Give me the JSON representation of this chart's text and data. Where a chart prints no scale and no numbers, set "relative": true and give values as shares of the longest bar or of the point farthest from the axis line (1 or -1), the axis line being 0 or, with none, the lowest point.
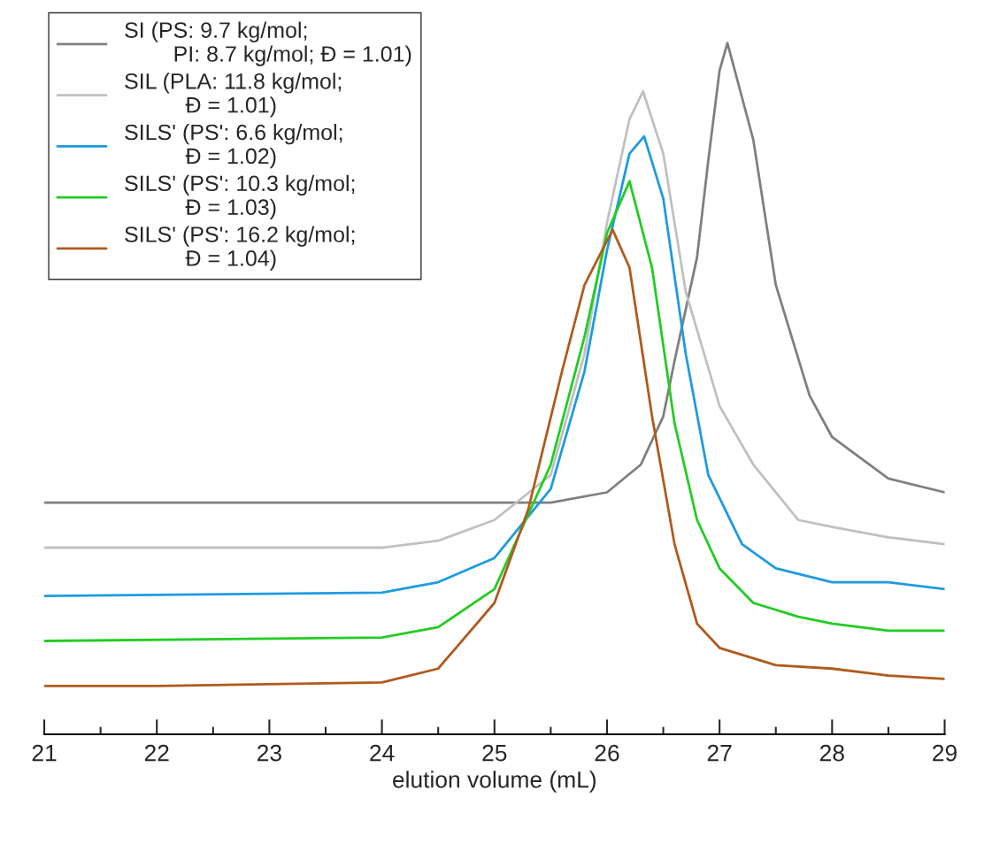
{
  "chart_data": {
    "type": "line",
    "relative": true,
    "xlabel": "elution volume (mL)",
    "xlim": [
      21,
      29
    ],
    "xticks": [
      21,
      22,
      23,
      24,
      25,
      26,
      27,
      28,
      29
    ],
    "legend": "top left",
    "marker": "none",
    "line_style": "solid",
    "grid": false,
    "tick_labels": "x",
    "series": [
      {
        "name": "SI (PS: 9.7 kg/mol;\n        PI: 8.7 kg/mol; Đ = 1.01)",
        "color": "#7f7f7f",
        "x": [
          21,
          25.5,
          26,
          26.3,
          26.5,
          26.6,
          26.8,
          26.9,
          27.0,
          27.07,
          27.3,
          27.5,
          27.8,
          28,
          28.5,
          29
        ],
        "values": [
          0.335,
          0.335,
          0.35,
          0.39,
          0.46,
          0.54,
          0.69,
          0.83,
          0.96,
          1,
          0.86,
          0.65,
          0.49,
          0.43,
          0.37,
          0.35
        ]
      },
      {
        "name": "SIL (PLA: 11.8 kg/mol;\n          Đ = 1.01)",
        "color": "#c0c0c0",
        "x": [
          21,
          24,
          24.5,
          25,
          25.5,
          25.8,
          26,
          26.2,
          26.32,
          26.5,
          26.7,
          27,
          27.3,
          27.7,
          28,
          28.5,
          29
        ],
        "values": [
          0.27,
          0.27,
          0.28,
          0.31,
          0.375,
          0.55,
          0.74,
          0.89,
          0.93,
          0.84,
          0.64,
          0.475,
          0.39,
          0.31,
          0.3,
          0.285,
          0.275
        ]
      },
      {
        "name": "SILS' (PS': 6.6 kg/mol;\n          Đ = 1.02)",
        "color": "#1e9be0",
        "x": [
          21,
          24,
          24.5,
          25,
          25.5,
          25.8,
          26,
          26.2,
          26.33,
          26.5,
          26.7,
          26.9,
          27.2,
          27.5,
          28,
          28.5,
          29
        ],
        "values": [
          0.2,
          0.205,
          0.22,
          0.255,
          0.355,
          0.525,
          0.7,
          0.84,
          0.865,
          0.775,
          0.55,
          0.375,
          0.275,
          0.24,
          0.22,
          0.22,
          0.21
        ]
      },
      {
        "name": "SILS' (PS': 10.3 kg/mol;\n          Đ = 1.03)",
        "color": "#22cc22",
        "x": [
          21,
          24,
          24.5,
          25,
          25.5,
          25.8,
          26,
          26.2,
          26.4,
          26.6,
          26.8,
          27,
          27.3,
          27.7,
          28,
          28.5,
          29
        ],
        "values": [
          0.135,
          0.14,
          0.155,
          0.21,
          0.39,
          0.575,
          0.725,
          0.8,
          0.675,
          0.45,
          0.31,
          0.24,
          0.19,
          0.17,
          0.16,
          0.15,
          0.15
        ]
      },
      {
        "name": "SILS' (PS': 16.2 kg/mol;\n          Đ = 1.04)",
        "color": "#b05a1e",
        "x": [
          21,
          22,
          24,
          24.5,
          25,
          25.3,
          25.6,
          25.8,
          26.05,
          26.2,
          26.4,
          26.6,
          26.8,
          27,
          27.5,
          28,
          28.5,
          29
        ],
        "values": [
          0.07,
          0.07,
          0.075,
          0.095,
          0.19,
          0.325,
          0.525,
          0.65,
          0.73,
          0.675,
          0.46,
          0.275,
          0.16,
          0.125,
          0.1,
          0.095,
          0.085,
          0.08
        ]
      }
    ]
  }
}
